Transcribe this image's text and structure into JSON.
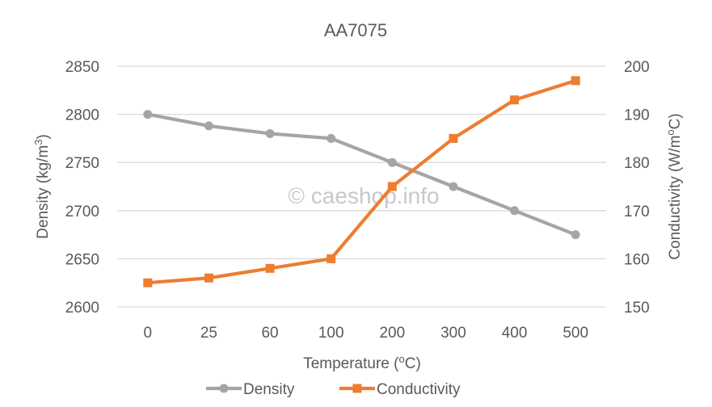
{
  "chart_data": {
    "type": "line",
    "title": "AA7075",
    "xlabel": "Temperature (°C)",
    "xlabel_main": "Temperature (",
    "xlabel_sup": "o",
    "xlabel_tail": "C)",
    "ylabel": "Density (kg/m³)",
    "ylabel_main": "Density (kg/m",
    "ylabel_sup": "3",
    "ylabel_tail": ")",
    "y2label": "Conductivity (W/m°C)",
    "y2label_main": "Conductivity (W/m",
    "y2label_sup": "o",
    "y2label_tail": "C)",
    "categories": [
      "0",
      "25",
      "60",
      "100",
      "200",
      "300",
      "400",
      "500"
    ],
    "ylim": [
      2600,
      2850
    ],
    "yticks": [
      2600,
      2650,
      2700,
      2750,
      2800,
      2850
    ],
    "y2lim": [
      150,
      200
    ],
    "y2ticks": [
      150,
      160,
      170,
      180,
      190,
      200
    ],
    "grid": true,
    "legend_position": "bottom",
    "series": [
      {
        "name": "Density",
        "axis": "left",
        "marker": "circle",
        "color": "#a5a5a5",
        "values": [
          2800,
          2788,
          2780,
          2775,
          2750,
          2725,
          2700,
          2675
        ]
      },
      {
        "name": "Conductivity",
        "axis": "right",
        "marker": "square",
        "color": "#ed7d31",
        "values": [
          155,
          156,
          158,
          160,
          175,
          185,
          193,
          197
        ]
      }
    ],
    "watermark": "© caeshop.info"
  }
}
